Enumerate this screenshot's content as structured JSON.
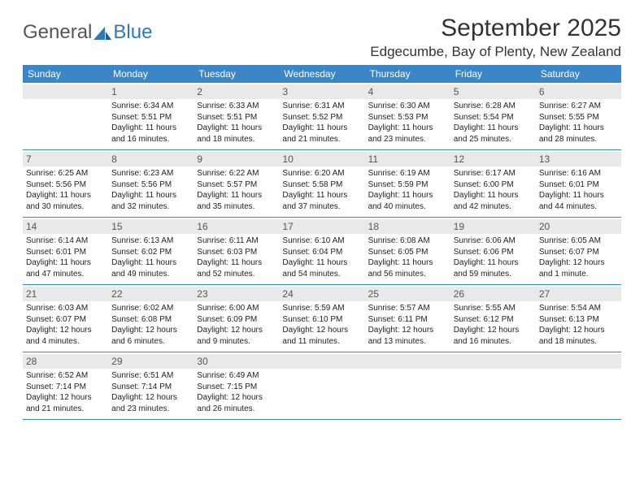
{
  "colors": {
    "header_bg": "#3b86c6",
    "header_text": "#ffffff",
    "daynum_bg": "#e9e9e9",
    "daynum_text": "#555555",
    "body_text": "#222222",
    "title_text": "#333333",
    "divider": "#3b86c6",
    "logo_gray": "#555555",
    "logo_blue": "#2f78b7",
    "page_bg": "#ffffff"
  },
  "fonts": {
    "title_size_pt": 22,
    "location_size_pt": 13,
    "dayhead_size_pt": 9,
    "daynum_size_pt": 9,
    "detail_size_pt": 7.5,
    "family": "Arial"
  },
  "logo": {
    "text1": "General",
    "text2": "Blue"
  },
  "title": "September 2025",
  "location": "Edgecumbe, Bay of Plenty, New Zealand",
  "day_headers": [
    "Sunday",
    "Monday",
    "Tuesday",
    "Wednesday",
    "Thursday",
    "Friday",
    "Saturday"
  ],
  "weeks": [
    [
      {
        "n": "",
        "lines": []
      },
      {
        "n": "1",
        "lines": [
          "Sunrise: 6:34 AM",
          "Sunset: 5:51 PM",
          "Daylight: 11 hours",
          "and 16 minutes."
        ]
      },
      {
        "n": "2",
        "lines": [
          "Sunrise: 6:33 AM",
          "Sunset: 5:51 PM",
          "Daylight: 11 hours",
          "and 18 minutes."
        ]
      },
      {
        "n": "3",
        "lines": [
          "Sunrise: 6:31 AM",
          "Sunset: 5:52 PM",
          "Daylight: 11 hours",
          "and 21 minutes."
        ]
      },
      {
        "n": "4",
        "lines": [
          "Sunrise: 6:30 AM",
          "Sunset: 5:53 PM",
          "Daylight: 11 hours",
          "and 23 minutes."
        ]
      },
      {
        "n": "5",
        "lines": [
          "Sunrise: 6:28 AM",
          "Sunset: 5:54 PM",
          "Daylight: 11 hours",
          "and 25 minutes."
        ]
      },
      {
        "n": "6",
        "lines": [
          "Sunrise: 6:27 AM",
          "Sunset: 5:55 PM",
          "Daylight: 11 hours",
          "and 28 minutes."
        ]
      }
    ],
    [
      {
        "n": "7",
        "lines": [
          "Sunrise: 6:25 AM",
          "Sunset: 5:56 PM",
          "Daylight: 11 hours",
          "and 30 minutes."
        ]
      },
      {
        "n": "8",
        "lines": [
          "Sunrise: 6:23 AM",
          "Sunset: 5:56 PM",
          "Daylight: 11 hours",
          "and 32 minutes."
        ]
      },
      {
        "n": "9",
        "lines": [
          "Sunrise: 6:22 AM",
          "Sunset: 5:57 PM",
          "Daylight: 11 hours",
          "and 35 minutes."
        ]
      },
      {
        "n": "10",
        "lines": [
          "Sunrise: 6:20 AM",
          "Sunset: 5:58 PM",
          "Daylight: 11 hours",
          "and 37 minutes."
        ]
      },
      {
        "n": "11",
        "lines": [
          "Sunrise: 6:19 AM",
          "Sunset: 5:59 PM",
          "Daylight: 11 hours",
          "and 40 minutes."
        ]
      },
      {
        "n": "12",
        "lines": [
          "Sunrise: 6:17 AM",
          "Sunset: 6:00 PM",
          "Daylight: 11 hours",
          "and 42 minutes."
        ]
      },
      {
        "n": "13",
        "lines": [
          "Sunrise: 6:16 AM",
          "Sunset: 6:01 PM",
          "Daylight: 11 hours",
          "and 44 minutes."
        ]
      }
    ],
    [
      {
        "n": "14",
        "lines": [
          "Sunrise: 6:14 AM",
          "Sunset: 6:01 PM",
          "Daylight: 11 hours",
          "and 47 minutes."
        ]
      },
      {
        "n": "15",
        "lines": [
          "Sunrise: 6:13 AM",
          "Sunset: 6:02 PM",
          "Daylight: 11 hours",
          "and 49 minutes."
        ]
      },
      {
        "n": "16",
        "lines": [
          "Sunrise: 6:11 AM",
          "Sunset: 6:03 PM",
          "Daylight: 11 hours",
          "and 52 minutes."
        ]
      },
      {
        "n": "17",
        "lines": [
          "Sunrise: 6:10 AM",
          "Sunset: 6:04 PM",
          "Daylight: 11 hours",
          "and 54 minutes."
        ]
      },
      {
        "n": "18",
        "lines": [
          "Sunrise: 6:08 AM",
          "Sunset: 6:05 PM",
          "Daylight: 11 hours",
          "and 56 minutes."
        ]
      },
      {
        "n": "19",
        "lines": [
          "Sunrise: 6:06 AM",
          "Sunset: 6:06 PM",
          "Daylight: 11 hours",
          "and 59 minutes."
        ]
      },
      {
        "n": "20",
        "lines": [
          "Sunrise: 6:05 AM",
          "Sunset: 6:07 PM",
          "Daylight: 12 hours",
          "and 1 minute."
        ]
      }
    ],
    [
      {
        "n": "21",
        "lines": [
          "Sunrise: 6:03 AM",
          "Sunset: 6:07 PM",
          "Daylight: 12 hours",
          "and 4 minutes."
        ]
      },
      {
        "n": "22",
        "lines": [
          "Sunrise: 6:02 AM",
          "Sunset: 6:08 PM",
          "Daylight: 12 hours",
          "and 6 minutes."
        ]
      },
      {
        "n": "23",
        "lines": [
          "Sunrise: 6:00 AM",
          "Sunset: 6:09 PM",
          "Daylight: 12 hours",
          "and 9 minutes."
        ]
      },
      {
        "n": "24",
        "lines": [
          "Sunrise: 5:59 AM",
          "Sunset: 6:10 PM",
          "Daylight: 12 hours",
          "and 11 minutes."
        ]
      },
      {
        "n": "25",
        "lines": [
          "Sunrise: 5:57 AM",
          "Sunset: 6:11 PM",
          "Daylight: 12 hours",
          "and 13 minutes."
        ]
      },
      {
        "n": "26",
        "lines": [
          "Sunrise: 5:55 AM",
          "Sunset: 6:12 PM",
          "Daylight: 12 hours",
          "and 16 minutes."
        ]
      },
      {
        "n": "27",
        "lines": [
          "Sunrise: 5:54 AM",
          "Sunset: 6:13 PM",
          "Daylight: 12 hours",
          "and 18 minutes."
        ]
      }
    ],
    [
      {
        "n": "28",
        "lines": [
          "Sunrise: 6:52 AM",
          "Sunset: 7:14 PM",
          "Daylight: 12 hours",
          "and 21 minutes."
        ]
      },
      {
        "n": "29",
        "lines": [
          "Sunrise: 6:51 AM",
          "Sunset: 7:14 PM",
          "Daylight: 12 hours",
          "and 23 minutes."
        ]
      },
      {
        "n": "30",
        "lines": [
          "Sunrise: 6:49 AM",
          "Sunset: 7:15 PM",
          "Daylight: 12 hours",
          "and 26 minutes."
        ]
      },
      {
        "n": "",
        "lines": []
      },
      {
        "n": "",
        "lines": []
      },
      {
        "n": "",
        "lines": []
      },
      {
        "n": "",
        "lines": []
      }
    ]
  ]
}
